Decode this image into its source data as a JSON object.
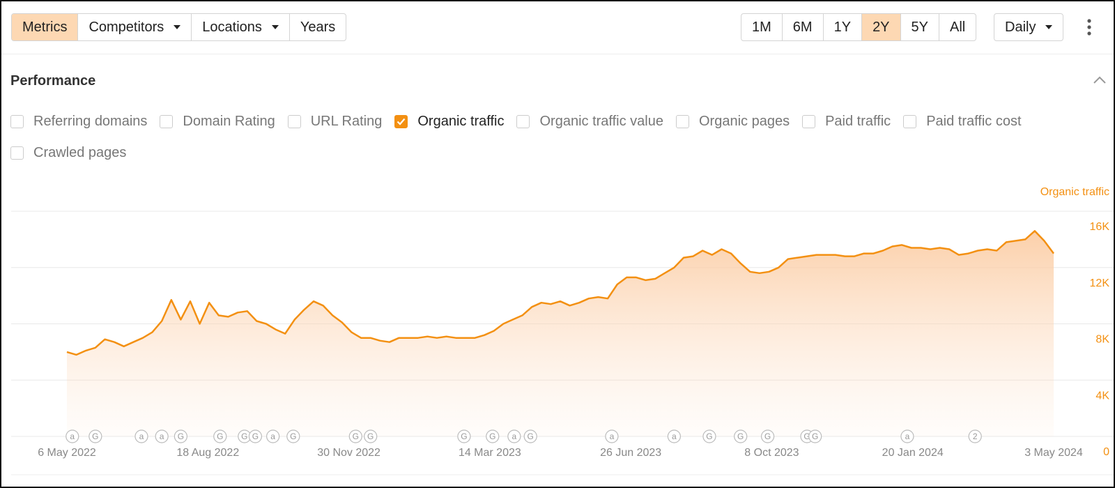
{
  "toolbar": {
    "tabs": [
      {
        "label": "Metrics",
        "active": true
      },
      {
        "label": "Competitors",
        "dropdown": true
      },
      {
        "label": "Locations",
        "dropdown": true
      },
      {
        "label": "Years"
      }
    ],
    "ranges": [
      {
        "label": "1M"
      },
      {
        "label": "6M"
      },
      {
        "label": "1Y"
      },
      {
        "label": "2Y",
        "active": true
      },
      {
        "label": "5Y"
      },
      {
        "label": "All"
      }
    ],
    "interval": "Daily"
  },
  "section": {
    "title": "Performance",
    "metrics": [
      {
        "label": "Referring domains",
        "checked": false
      },
      {
        "label": "Domain Rating",
        "checked": false
      },
      {
        "label": "URL Rating",
        "checked": false
      },
      {
        "label": "Organic traffic",
        "checked": true
      },
      {
        "label": "Organic traffic value",
        "checked": false
      },
      {
        "label": "Organic pages",
        "checked": false
      },
      {
        "label": "Paid traffic",
        "checked": false
      },
      {
        "label": "Paid traffic cost",
        "checked": false
      },
      {
        "label": "Crawled pages",
        "checked": false
      }
    ]
  },
  "chart_data": {
    "type": "area",
    "x": [
      "2022-05-06",
      "2022-05-13",
      "2022-05-20",
      "2022-05-27",
      "2022-06-03",
      "2022-06-10",
      "2022-06-17",
      "2022-06-24",
      "2022-07-01",
      "2022-07-08",
      "2022-07-15",
      "2022-07-22",
      "2022-07-29",
      "2022-08-05",
      "2022-08-12",
      "2022-08-19",
      "2022-08-26",
      "2022-09-02",
      "2022-09-09",
      "2022-09-16",
      "2022-09-23",
      "2022-09-30",
      "2022-10-07",
      "2022-10-14",
      "2022-10-21",
      "2022-10-28",
      "2022-11-04",
      "2022-11-11",
      "2022-11-18",
      "2022-11-25",
      "2022-12-02",
      "2022-12-09",
      "2022-12-16",
      "2022-12-23",
      "2022-12-30",
      "2023-01-06",
      "2023-01-13",
      "2023-01-20",
      "2023-01-27",
      "2023-02-03",
      "2023-02-10",
      "2023-02-17",
      "2023-02-24",
      "2023-03-03",
      "2023-03-10",
      "2023-03-17",
      "2023-03-24",
      "2023-03-31",
      "2023-04-07",
      "2023-04-14",
      "2023-04-21",
      "2023-04-28",
      "2023-05-05",
      "2023-05-12",
      "2023-05-19",
      "2023-05-26",
      "2023-06-02",
      "2023-06-09",
      "2023-06-16",
      "2023-06-23",
      "2023-06-30",
      "2023-07-07",
      "2023-07-14",
      "2023-07-21",
      "2023-07-28",
      "2023-08-04",
      "2023-08-11",
      "2023-08-18",
      "2023-08-25",
      "2023-09-01",
      "2023-09-08",
      "2023-09-15",
      "2023-09-22",
      "2023-09-29",
      "2023-10-06",
      "2023-10-13",
      "2023-10-20",
      "2023-10-27",
      "2023-11-03",
      "2023-11-10",
      "2023-11-17",
      "2023-11-24",
      "2023-12-01",
      "2023-12-08",
      "2023-12-15",
      "2023-12-22",
      "2023-12-29",
      "2024-01-05",
      "2024-01-12",
      "2024-01-19",
      "2024-01-26",
      "2024-02-02",
      "2024-02-09",
      "2024-02-16",
      "2024-02-23",
      "2024-03-01",
      "2024-03-08",
      "2024-03-15",
      "2024-03-22",
      "2024-03-29",
      "2024-04-05",
      "2024-04-12",
      "2024-04-19",
      "2024-04-26",
      "2024-05-03"
    ],
    "series": [
      {
        "name": "Organic traffic",
        "color": "#f39012",
        "values": [
          6000,
          5800,
          6100,
          6300,
          6900,
          6700,
          6400,
          6700,
          7000,
          7400,
          8200,
          9700,
          8300,
          9600,
          8000,
          9500,
          8600,
          8500,
          8800,
          8900,
          8200,
          8000,
          7600,
          7300,
          8300,
          9000,
          9600,
          9300,
          8600,
          8100,
          7400,
          7000,
          7000,
          6800,
          6700,
          7000,
          7000,
          7000,
          7100,
          7000,
          7100,
          7000,
          7000,
          7000,
          7200,
          7500,
          8000,
          8300,
          8600,
          9200,
          9500,
          9400,
          9600,
          9300,
          9500,
          9800,
          9900,
          9800,
          10800,
          11300,
          11300,
          11100,
          11200,
          11600,
          12000,
          12700,
          12800,
          13200,
          12900,
          13300,
          13000,
          12300,
          11700,
          11600,
          11700,
          12000,
          12600,
          12700,
          12800,
          12900,
          12900,
          12900,
          12800,
          12800,
          13000,
          13000,
          13200,
          13500,
          13600,
          13400,
          13400,
          13300,
          13400,
          13300,
          12900,
          13000,
          13200,
          13300,
          13200,
          13800,
          13900,
          14000,
          14600,
          13900,
          13000
        ]
      }
    ],
    "xlim": [
      "2022-05-06",
      "2024-05-03"
    ],
    "xticks": [
      {
        "value": "2022-05-06",
        "label": "6 May 2022"
      },
      {
        "value": "2022-08-18",
        "label": "18 Aug 2022"
      },
      {
        "value": "2022-11-30",
        "label": "30 Nov 2022"
      },
      {
        "value": "2023-03-14",
        "label": "14 Mar 2023"
      },
      {
        "value": "2023-06-26",
        "label": "26 Jun 2023"
      },
      {
        "value": "2023-10-08",
        "label": "8 Oct 2023"
      },
      {
        "value": "2024-01-20",
        "label": "20 Jan 2024"
      },
      {
        "value": "2024-05-03",
        "label": "3 May 2024"
      }
    ],
    "ylim": [
      0,
      16000
    ],
    "yticks": [
      0,
      {
        "value": 4000,
        "label": "4K"
      },
      {
        "value": 8000,
        "label": "8K"
      },
      {
        "value": 12000,
        "label": "12K"
      },
      {
        "value": 16000,
        "label": "16K"
      }
    ],
    "grid": true,
    "events": [
      {
        "x": "2022-05-10",
        "label": "a"
      },
      {
        "x": "2022-05-27",
        "label": "G"
      },
      {
        "x": "2022-06-30",
        "label": "a"
      },
      {
        "x": "2022-07-15",
        "label": "a"
      },
      {
        "x": "2022-07-29",
        "label": "G"
      },
      {
        "x": "2022-08-27",
        "label": "G"
      },
      {
        "x": "2022-09-14",
        "label": "G"
      },
      {
        "x": "2022-09-22",
        "label": "G"
      },
      {
        "x": "2022-10-05",
        "label": "a"
      },
      {
        "x": "2022-10-20",
        "label": "G"
      },
      {
        "x": "2022-12-05",
        "label": "G"
      },
      {
        "x": "2022-12-16",
        "label": "G"
      },
      {
        "x": "2023-02-23",
        "label": "G"
      },
      {
        "x": "2023-03-16",
        "label": "G"
      },
      {
        "x": "2023-04-01",
        "label": "a"
      },
      {
        "x": "2023-04-13",
        "label": "G"
      },
      {
        "x": "2023-06-12",
        "label": "a"
      },
      {
        "x": "2023-07-28",
        "label": "a"
      },
      {
        "x": "2023-08-23",
        "label": "G"
      },
      {
        "x": "2023-09-15",
        "label": "G"
      },
      {
        "x": "2023-10-05",
        "label": "G"
      },
      {
        "x": "2023-11-03",
        "label": "G"
      },
      {
        "x": "2023-11-09",
        "label": "G"
      },
      {
        "x": "2024-01-16",
        "label": "a"
      },
      {
        "x": "2024-03-06",
        "label": "2"
      }
    ]
  }
}
